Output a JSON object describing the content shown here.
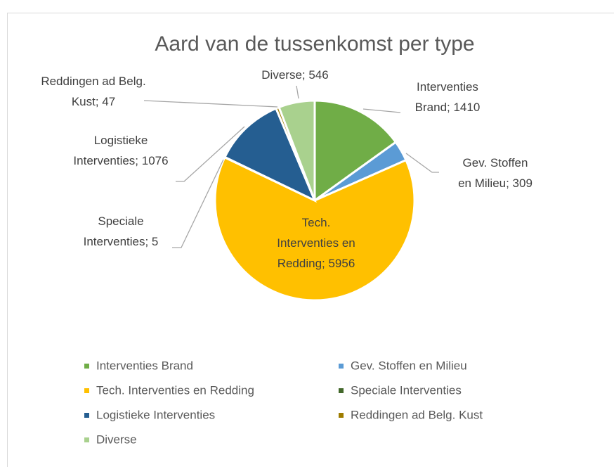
{
  "chart_data": {
    "type": "pie",
    "title": "Aard van de tussenkomst per type",
    "categories": [
      "Interventies Brand",
      "Gev. Stoffen en Milieu",
      "Tech. Interventies en Redding",
      "Speciale Interventies",
      "Logistieke Interventies",
      "Reddingen ad Belg. Kust",
      "Diverse"
    ],
    "values": [
      1410,
      309,
      5956,
      5,
      1076,
      47,
      546
    ],
    "value_labels": [
      "Interventies Brand; 1410",
      "Gev. Stoffen en Milieu; 309",
      "Tech. Interventies en Redding; 5956",
      "Speciale Interventies; 5",
      "Logistieke Interventies; 1076",
      "Reddingen ad Belg. Kust; 47",
      "Diverse; 546"
    ],
    "colors": [
      "#70ad47",
      "#5b9bd5",
      "#ffc000",
      "#43682b",
      "#255e91",
      "#9e7c00",
      "#a9d18e"
    ],
    "legend": "bottom"
  }
}
